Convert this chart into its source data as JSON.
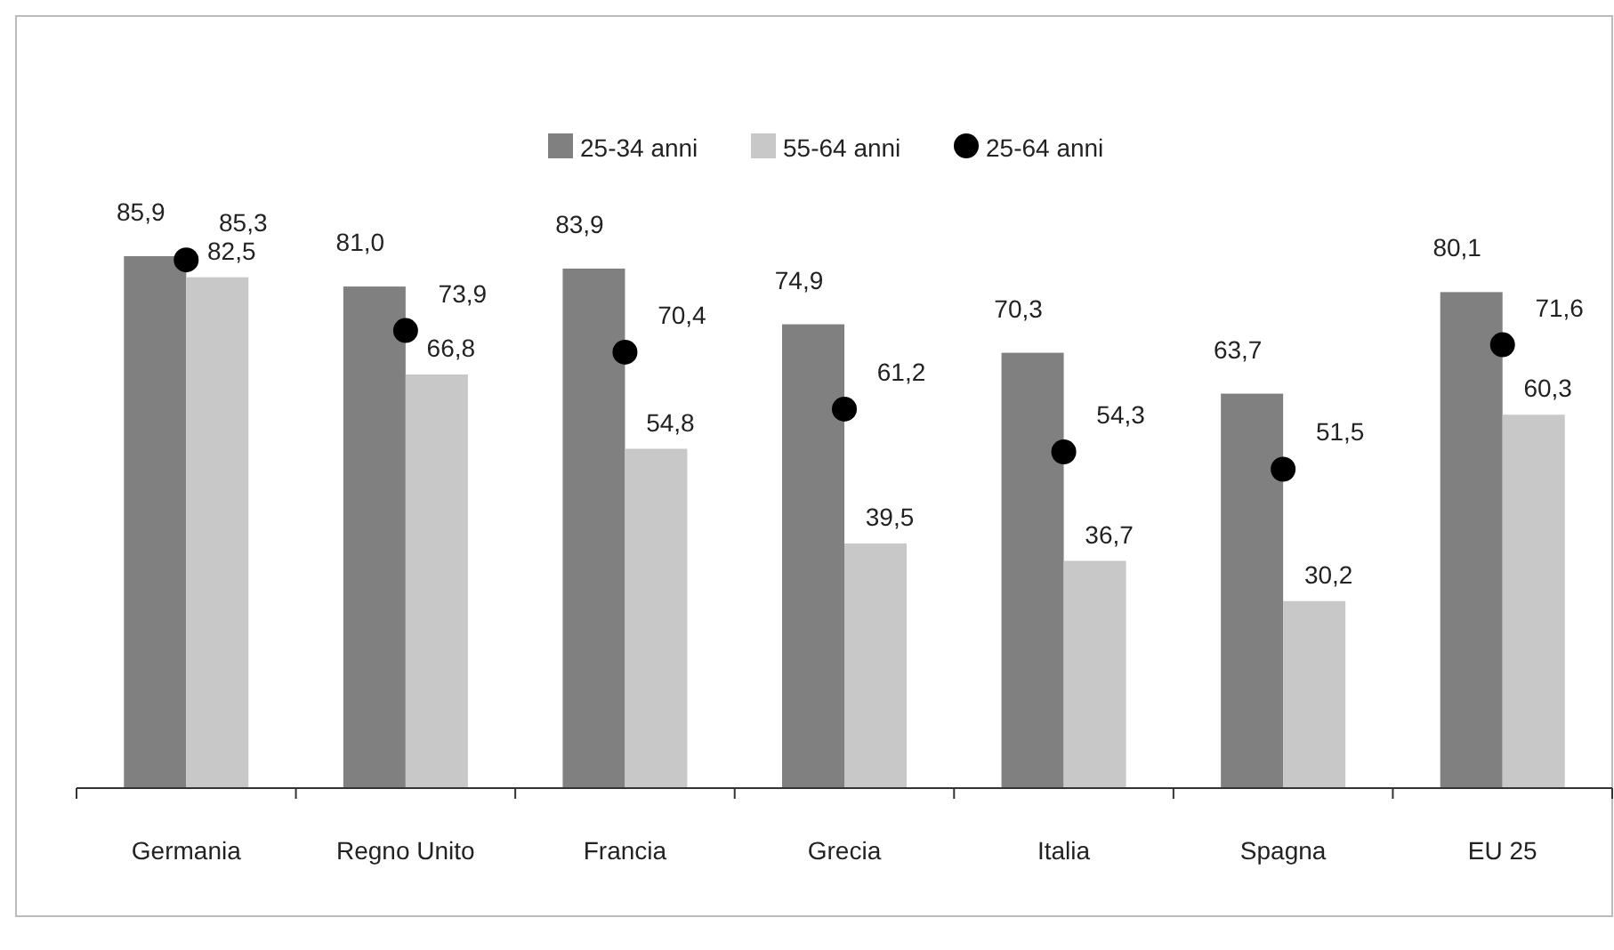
{
  "chart_data": {
    "type": "bar",
    "categories": [
      "Germania",
      "Regno Unito",
      "Francia",
      "Grecia",
      "Italia",
      "Spagna",
      "EU 25"
    ],
    "series": [
      {
        "name": "25-34 anni",
        "color": "#808080",
        "values": [
          85.9,
          81.0,
          83.9,
          74.9,
          70.3,
          63.7,
          80.1
        ],
        "value_labels": [
          "85,9",
          "81,0",
          "83,9",
          "74,9",
          "70,3",
          "63,7",
          "80,1"
        ]
      },
      {
        "name": "55-64 anni",
        "color": "#c8c8c8",
        "values": [
          82.5,
          66.8,
          54.8,
          39.5,
          36.7,
          30.2,
          60.3
        ],
        "value_labels": [
          "82,5",
          "66,8",
          "54,8",
          "39,5",
          "36,7",
          "30,2",
          "60,3"
        ]
      },
      {
        "name": "25-64 anni",
        "type": "scatter",
        "color": "#000000",
        "values": [
          85.3,
          73.9,
          70.4,
          61.2,
          54.3,
          51.5,
          71.6
        ],
        "value_labels": [
          "85,3",
          "73,9",
          "70,4",
          "61,2",
          "54,3",
          "51,5",
          "71,6"
        ]
      }
    ],
    "marker": "circle",
    "legend": "top"
  }
}
